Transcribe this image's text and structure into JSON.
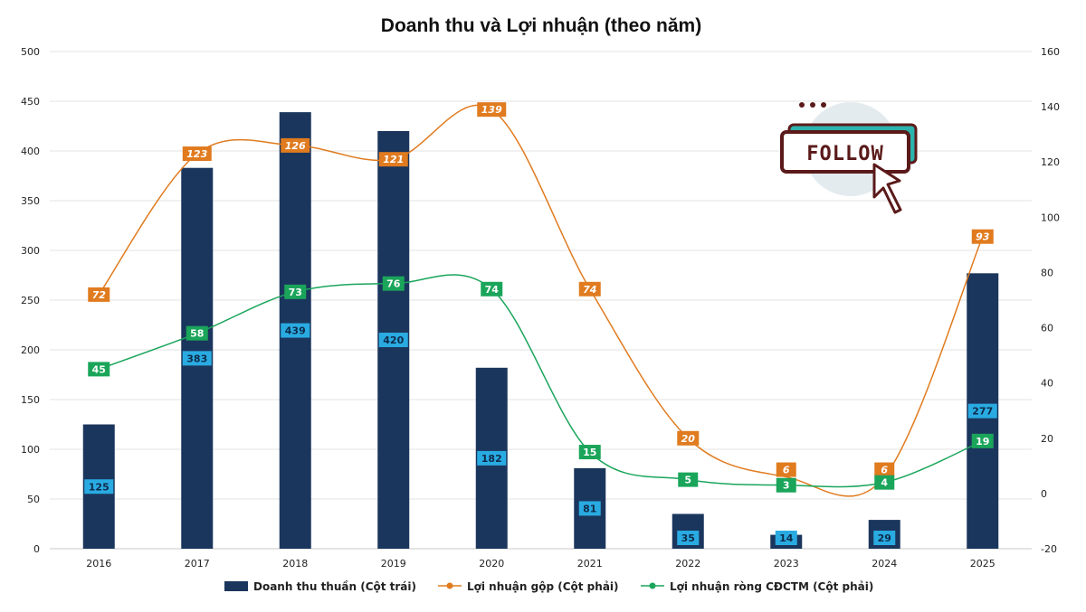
{
  "chart_data": {
    "type": "bar",
    "title": "Doanh thu và Lợi nhuận (theo năm)",
    "categories": [
      "2016",
      "2017",
      "2018",
      "2019",
      "2020",
      "2021",
      "2022",
      "2023",
      "2024",
      "2025"
    ],
    "series": [
      {
        "name": "Doanh thu thuần (Cột trái)",
        "type": "bar",
        "axis": "left",
        "values": [
          125,
          383,
          439,
          420,
          182,
          81,
          35,
          14,
          29,
          277
        ]
      },
      {
        "name": "Lợi nhuận gộp (Cột phải)",
        "type": "line",
        "axis": "right",
        "values": [
          72,
          123,
          126,
          121,
          139,
          74,
          20,
          6,
          6,
          93
        ]
      },
      {
        "name": "Lợi nhuận ròng CĐCTM (Cột phải)",
        "type": "line",
        "axis": "right",
        "values": [
          45,
          58,
          73,
          76,
          74,
          15,
          5,
          3,
          4,
          19
        ]
      }
    ],
    "y_left": {
      "min": 0,
      "max": 500,
      "step": 50,
      "ticks": [
        "0",
        "50",
        "100",
        "150",
        "200",
        "250",
        "300",
        "350",
        "400",
        "450",
        "500"
      ]
    },
    "y_right": {
      "min": -20,
      "max": 160,
      "step": 20,
      "ticks": [
        "-20",
        "0",
        "20",
        "40",
        "60",
        "80",
        "100",
        "120",
        "140",
        "160"
      ]
    },
    "grid": true,
    "legend_position": "bottom",
    "colors": {
      "bar": "#1b365d",
      "bar_label_bg": "#29abe2",
      "gross": "#e07b1f",
      "net": "#1aa55a"
    }
  },
  "overlay": {
    "follow_text": "FOLLOW",
    "icon": "follow-badge-icon"
  }
}
